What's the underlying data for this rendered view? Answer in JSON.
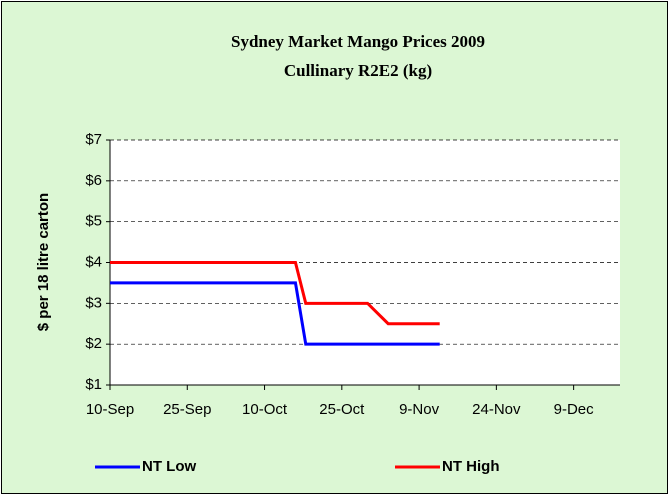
{
  "chart_data": {
    "type": "line",
    "title": "Sydney Market Mango Prices 2009",
    "subtitle": "Cullinary R2E2 (kg)",
    "y_label": "$ per 18 litre carton",
    "series": [
      {
        "name": "NT Low",
        "color": "#0000ff",
        "x": [
          "10-Sep",
          "16-Oct",
          "18-Oct",
          "13-Nov"
        ],
        "values": [
          3.5,
          3.5,
          2,
          2
        ]
      },
      {
        "name": "NT High",
        "color": "#ff0000",
        "x": [
          "10-Sep",
          "16-Oct",
          "18-Oct",
          "30-Oct",
          "3-Nov",
          "13-Nov"
        ],
        "values": [
          4,
          4,
          3,
          3,
          2.5,
          2.5
        ]
      }
    ],
    "xlim": [
      "10-Sep",
      "18-Dec"
    ],
    "xticks": [
      "10-Sep",
      "25-Sep",
      "10-Oct",
      "25-Oct",
      "9-Nov",
      "24-Nov",
      "9-Dec"
    ],
    "ylim": [
      1,
      7
    ],
    "yticks": [
      {
        "value": 1,
        "label": "$1"
      },
      {
        "value": 2,
        "label": "$2"
      },
      {
        "value": 3,
        "label": "$3"
      },
      {
        "value": 4,
        "label": "$4"
      },
      {
        "value": 5,
        "label": "$5"
      },
      {
        "value": 6,
        "label": "$6"
      },
      {
        "value": 7,
        "label": "$7"
      }
    ],
    "grid": true,
    "legend": "bottom"
  }
}
